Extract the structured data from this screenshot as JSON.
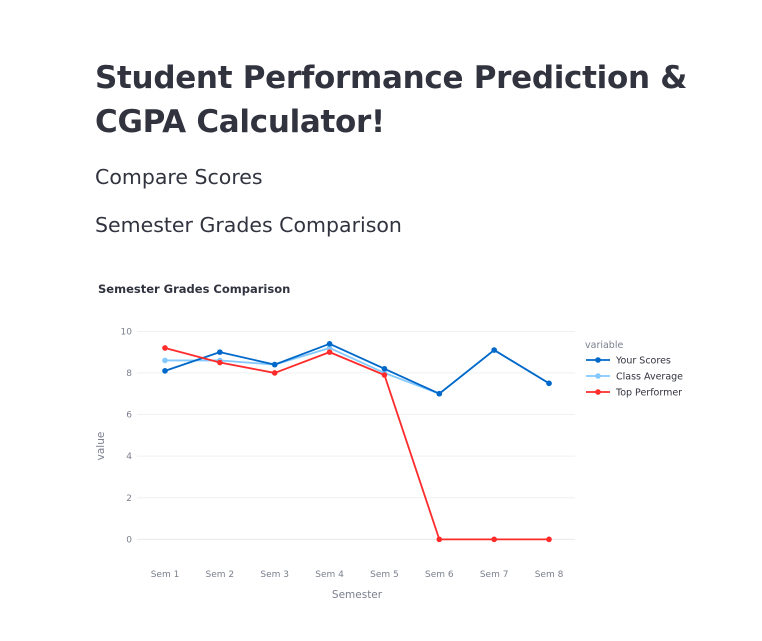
{
  "page": {
    "title": "Student Performance Prediction & CGPA Calculator!",
    "subheader_compare": "Compare Scores",
    "subheader_semester": "Semester Grades Comparison"
  },
  "chart_data": {
    "type": "line",
    "title": "Semester Grades Comparison",
    "xlabel": "Semester",
    "ylabel": "value",
    "categories": [
      "Sem 1",
      "Sem 2",
      "Sem 3",
      "Sem 4",
      "Sem 5",
      "Sem 6",
      "Sem 7",
      "Sem 8"
    ],
    "ylim": [
      -0.8,
      10.4
    ],
    "yticks": [
      0,
      2,
      4,
      6,
      8,
      10
    ],
    "grid": true,
    "legend_title": "variable",
    "legend_position": "right",
    "series": [
      {
        "name": "Your Scores",
        "color": "#0068c9",
        "values": [
          8.1,
          9.0,
          8.4,
          9.4,
          8.2,
          7.0,
          9.1,
          7.5
        ]
      },
      {
        "name": "Class Average",
        "color": "#83c9ff",
        "values": [
          8.6,
          8.6,
          8.4,
          9.2,
          8.0,
          7.0,
          9.1,
          7.5
        ]
      },
      {
        "name": "Top Performer",
        "color": "#ff2b2b",
        "values": [
          9.2,
          8.5,
          8.0,
          9.0,
          7.9,
          0,
          0,
          0
        ]
      }
    ]
  }
}
